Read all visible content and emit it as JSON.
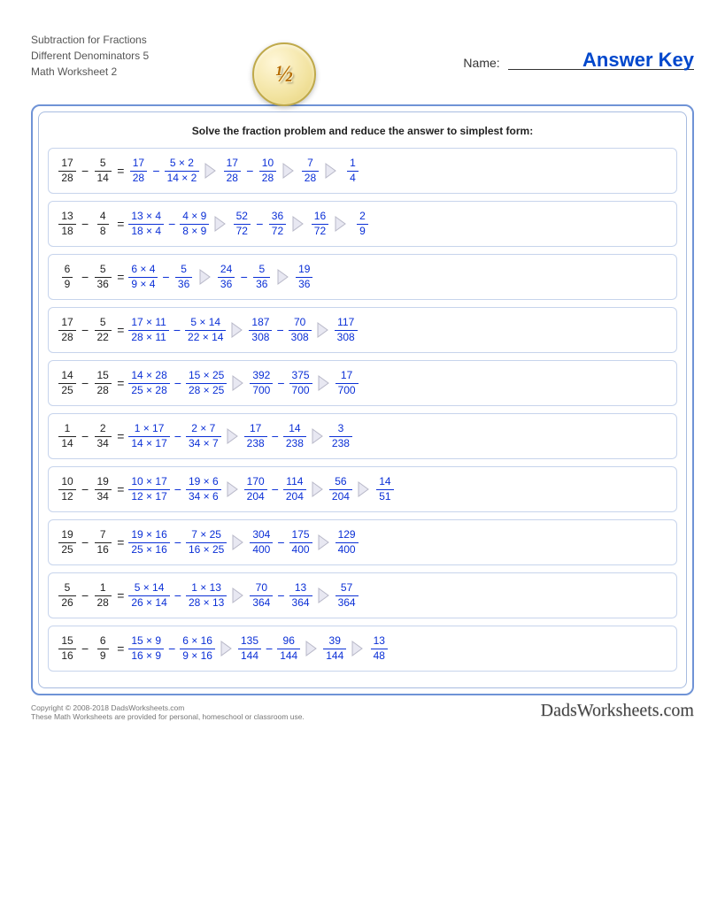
{
  "header": {
    "title_line1": "Subtraction for Fractions",
    "title_line2": "Different Denominators 5",
    "title_line3": "Math Worksheet 2",
    "logo_text": "½",
    "name_label": "Name:",
    "answer_key": "Answer Key"
  },
  "instruction": "Solve the fraction problem and reduce the answer to simplest form:",
  "colors": {
    "frame_border": "#6f93d6",
    "inner_border": "#a8bce0",
    "row_border": "#c7d4ec",
    "problem_text": "#222222",
    "solution_text": "#0a2fd6",
    "answer_key_text": "#0047cc",
    "arrow_fill": "#e8e8f2",
    "arrow_stroke": "#b8b8c8"
  },
  "problems": [
    {
      "lhs": [
        "17",
        "28",
        "5",
        "14"
      ],
      "steps": [
        [
          [
            "17",
            "28"
          ],
          [
            "5 × 2",
            "14 × 2"
          ]
        ],
        [
          [
            "17",
            "28"
          ],
          [
            "10",
            "28"
          ]
        ],
        [
          [
            "7",
            "28"
          ]
        ],
        [
          [
            "1",
            "4"
          ]
        ]
      ]
    },
    {
      "lhs": [
        "13",
        "18",
        "4",
        "8"
      ],
      "steps": [
        [
          [
            "13 × 4",
            "18 × 4"
          ],
          [
            "4 × 9",
            "8 × 9"
          ]
        ],
        [
          [
            "52",
            "72"
          ],
          [
            "36",
            "72"
          ]
        ],
        [
          [
            "16",
            "72"
          ]
        ],
        [
          [
            "2",
            "9"
          ]
        ]
      ]
    },
    {
      "lhs": [
        "6",
        "9",
        "5",
        "36"
      ],
      "steps": [
        [
          [
            "6 × 4",
            "9 × 4"
          ],
          [
            "5",
            "36"
          ]
        ],
        [
          [
            "24",
            "36"
          ],
          [
            "5",
            "36"
          ]
        ],
        [
          [
            "19",
            "36"
          ]
        ]
      ]
    },
    {
      "lhs": [
        "17",
        "28",
        "5",
        "22"
      ],
      "steps": [
        [
          [
            "17 × 11",
            "28 × 11"
          ],
          [
            "5 × 14",
            "22 × 14"
          ]
        ],
        [
          [
            "187",
            "308"
          ],
          [
            "70",
            "308"
          ]
        ],
        [
          [
            "117",
            "308"
          ]
        ]
      ]
    },
    {
      "lhs": [
        "14",
        "25",
        "15",
        "28"
      ],
      "steps": [
        [
          [
            "14 × 28",
            "25 × 28"
          ],
          [
            "15 × 25",
            "28 × 25"
          ]
        ],
        [
          [
            "392",
            "700"
          ],
          [
            "375",
            "700"
          ]
        ],
        [
          [
            "17",
            "700"
          ]
        ]
      ]
    },
    {
      "lhs": [
        "1",
        "14",
        "2",
        "34"
      ],
      "steps": [
        [
          [
            "1 × 17",
            "14 × 17"
          ],
          [
            "2 × 7",
            "34 × 7"
          ]
        ],
        [
          [
            "17",
            "238"
          ],
          [
            "14",
            "238"
          ]
        ],
        [
          [
            "3",
            "238"
          ]
        ]
      ]
    },
    {
      "lhs": [
        "10",
        "12",
        "19",
        "34"
      ],
      "steps": [
        [
          [
            "10 × 17",
            "12 × 17"
          ],
          [
            "19 × 6",
            "34 × 6"
          ]
        ],
        [
          [
            "170",
            "204"
          ],
          [
            "114",
            "204"
          ]
        ],
        [
          [
            "56",
            "204"
          ]
        ],
        [
          [
            "14",
            "51"
          ]
        ]
      ]
    },
    {
      "lhs": [
        "19",
        "25",
        "7",
        "16"
      ],
      "steps": [
        [
          [
            "19 × 16",
            "25 × 16"
          ],
          [
            "7 × 25",
            "16 × 25"
          ]
        ],
        [
          [
            "304",
            "400"
          ],
          [
            "175",
            "400"
          ]
        ],
        [
          [
            "129",
            "400"
          ]
        ]
      ]
    },
    {
      "lhs": [
        "5",
        "26",
        "1",
        "28"
      ],
      "steps": [
        [
          [
            "5 × 14",
            "26 × 14"
          ],
          [
            "1 × 13",
            "28 × 13"
          ]
        ],
        [
          [
            "70",
            "364"
          ],
          [
            "13",
            "364"
          ]
        ],
        [
          [
            "57",
            "364"
          ]
        ]
      ]
    },
    {
      "lhs": [
        "15",
        "16",
        "6",
        "9"
      ],
      "steps": [
        [
          [
            "15 × 9",
            "16 × 9"
          ],
          [
            "6 × 16",
            "9 × 16"
          ]
        ],
        [
          [
            "135",
            "144"
          ],
          [
            "96",
            "144"
          ]
        ],
        [
          [
            "39",
            "144"
          ]
        ],
        [
          [
            "13",
            "48"
          ]
        ]
      ]
    }
  ],
  "footer": {
    "copyright": "Copyright © 2008-2018 DadsWorksheets.com",
    "note": "These Math Worksheets are provided for personal, homeschool or classroom use.",
    "brand": "DadsWorksheets.com"
  }
}
